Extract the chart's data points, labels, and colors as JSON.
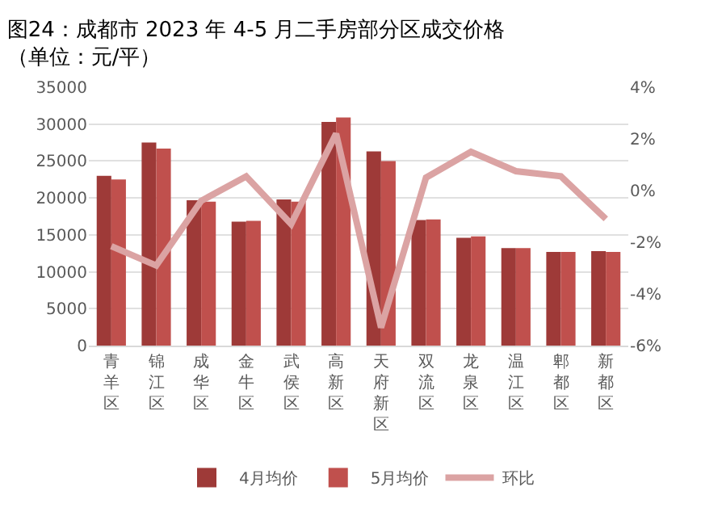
{
  "chart_data": {
    "type": "bar",
    "title": "图24：成都市 2023 年 4-5 月二手房部分区成交价格",
    "subtitle": "（单位：元/平）",
    "categories": [
      "青羊区",
      "锦江区",
      "成华区",
      "金牛区",
      "武侯区",
      "高新区",
      "天府新区",
      "双流区",
      "龙泉区",
      "温江区",
      "郫都区",
      "新都区"
    ],
    "series": [
      {
        "name": "4月均价",
        "color": "#9e3a38",
        "values": [
          23000,
          27500,
          19700,
          16800,
          19800,
          30300,
          26300,
          17000,
          14600,
          13200,
          12700,
          12800
        ]
      },
      {
        "name": "5月均价",
        "color": "#c0504d",
        "values": [
          22500,
          26700,
          19500,
          16900,
          19500,
          30900,
          25000,
          17100,
          14800,
          13200,
          12700,
          12700
        ]
      },
      {
        "name": "环比",
        "type": "line",
        "axis": "y2",
        "color": "#dba3a3",
        "values": [
          -2.15,
          -2.9,
          -0.4,
          0.55,
          -1.3,
          2.2,
          -5.3,
          0.5,
          1.5,
          0.75,
          0.55,
          -1.1
        ]
      }
    ],
    "ylim": [
      0,
      35000
    ],
    "yticks": [
      0,
      5000,
      10000,
      15000,
      20000,
      25000,
      30000,
      35000
    ],
    "y2lim": [
      -6,
      4
    ],
    "y2ticks": [
      {
        "value": -6,
        "label": "-6%"
      },
      {
        "value": -4,
        "label": "-4%"
      },
      {
        "value": -2,
        "label": "-2%"
      },
      {
        "value": 0,
        "label": "0%"
      },
      {
        "value": 2,
        "label": "2%"
      },
      {
        "value": 4,
        "label": "4%"
      }
    ],
    "grid": "y",
    "legend": "bottom",
    "marker": "none",
    "line_style": "solid"
  }
}
